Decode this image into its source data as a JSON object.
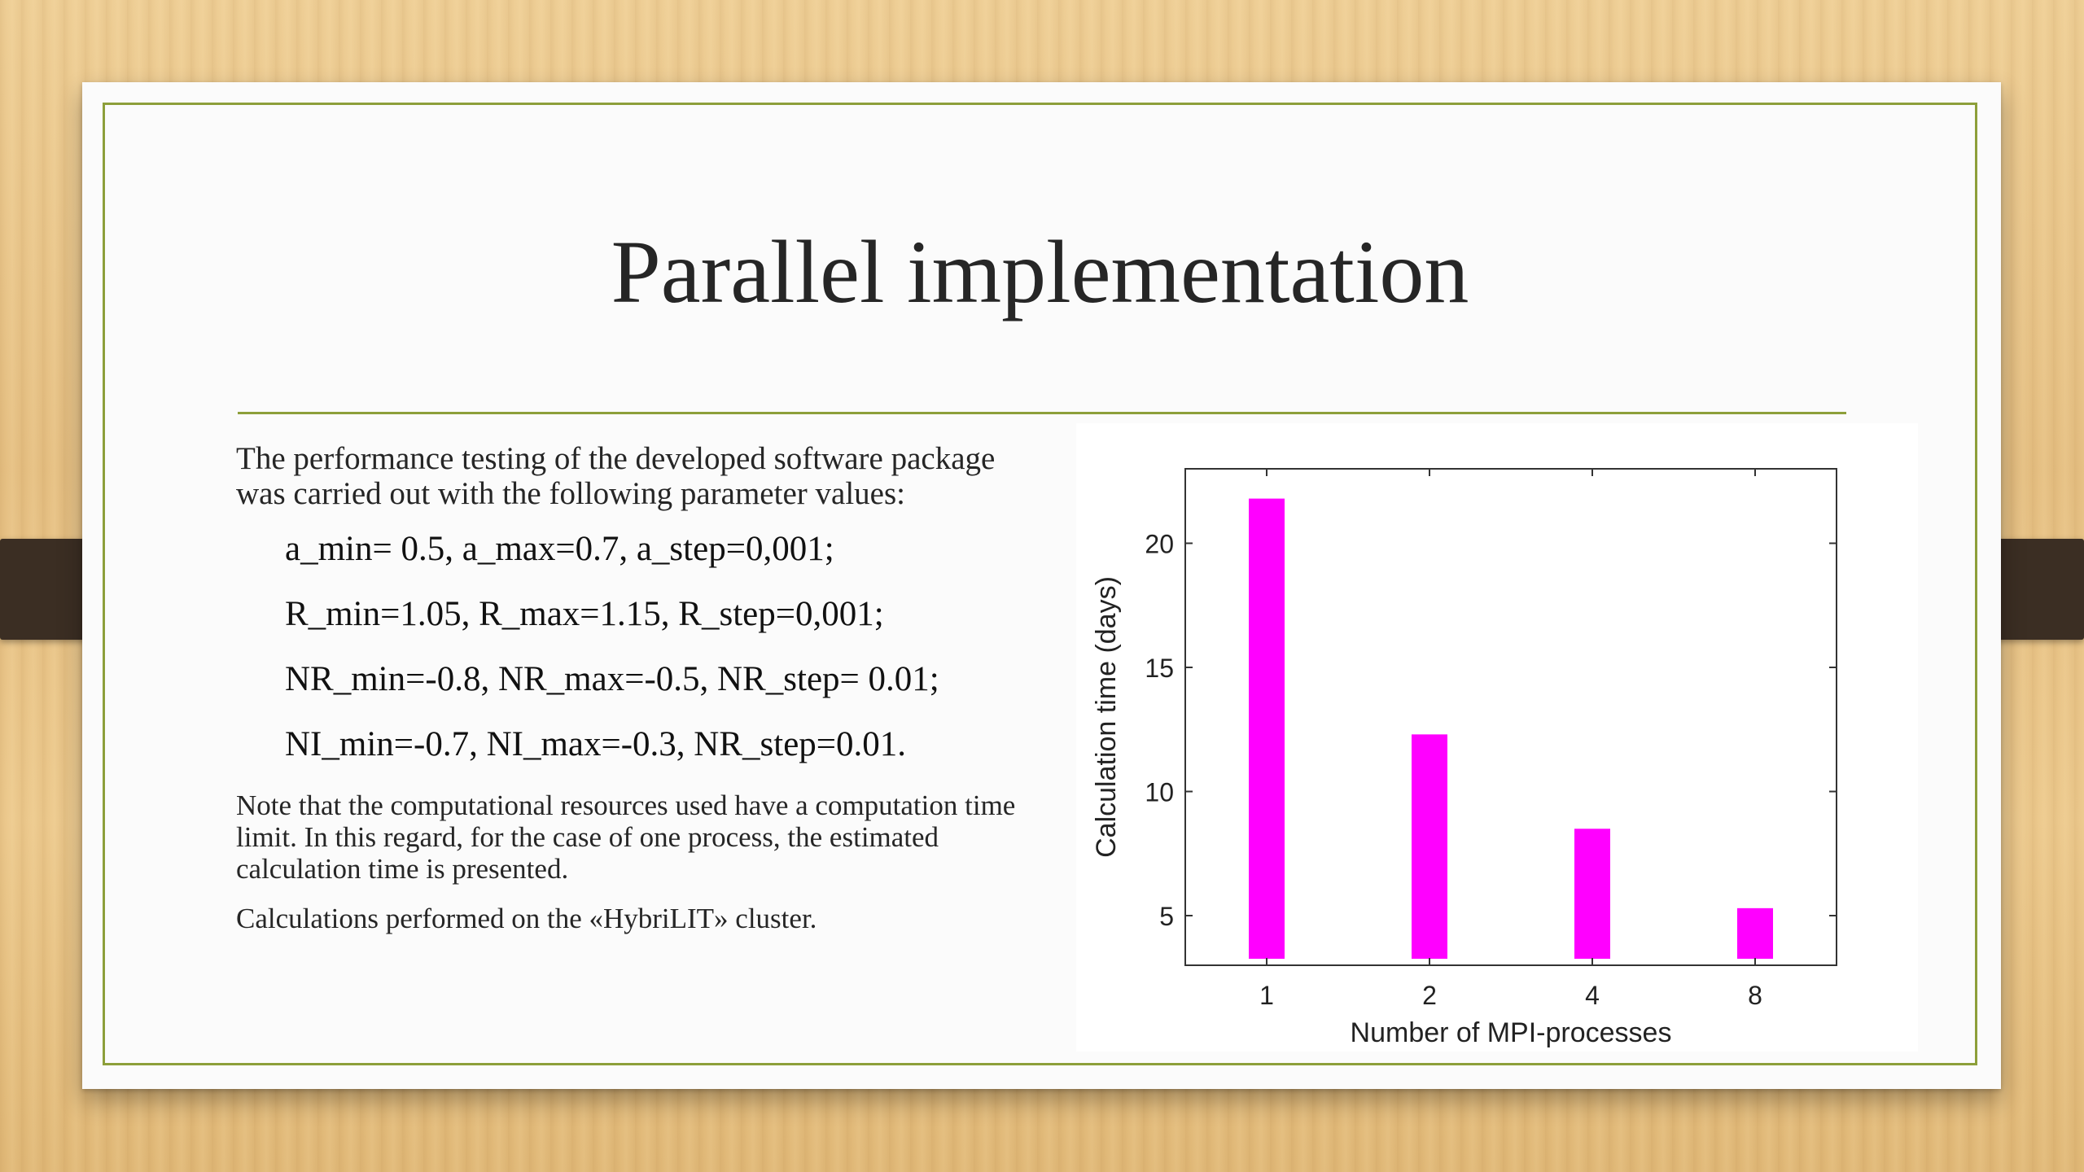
{
  "slide": {
    "title": "Parallel implementation",
    "intro": "The performance testing of the developed software package was carried out with the following parameter values:",
    "params": [
      "a_min= 0.5, a_max=0.7, a_step=0,001;",
      "R_min=1.05, R_max=1.15, R_step=0,001;",
      "NR_min=-0.8, NR_max=-0.5, NR_step= 0.01;",
      "NI_min=-0.7, NI_max=-0.3, NR_step=0.01."
    ],
    "note": "Note that the computational resources used have a computation time limit. In this regard, for the case of one process, the estimated calculation time is presented.",
    "cluster": "Calculations performed on the «HybriLIT» cluster."
  },
  "colors": {
    "accent": "#8d9f3a",
    "bar": "#ff00ff"
  },
  "chart_data": {
    "type": "bar",
    "categories": [
      "1",
      "2",
      "4",
      "8"
    ],
    "values": [
      21.8,
      12.3,
      8.5,
      5.3
    ],
    "title": "",
    "xlabel": "Number of MPI-processes",
    "ylabel": "Calculation time (days)",
    "ylim": [
      3,
      23
    ],
    "yticks": [
      5,
      10,
      15,
      20
    ],
    "grid": false,
    "legend": "none"
  }
}
